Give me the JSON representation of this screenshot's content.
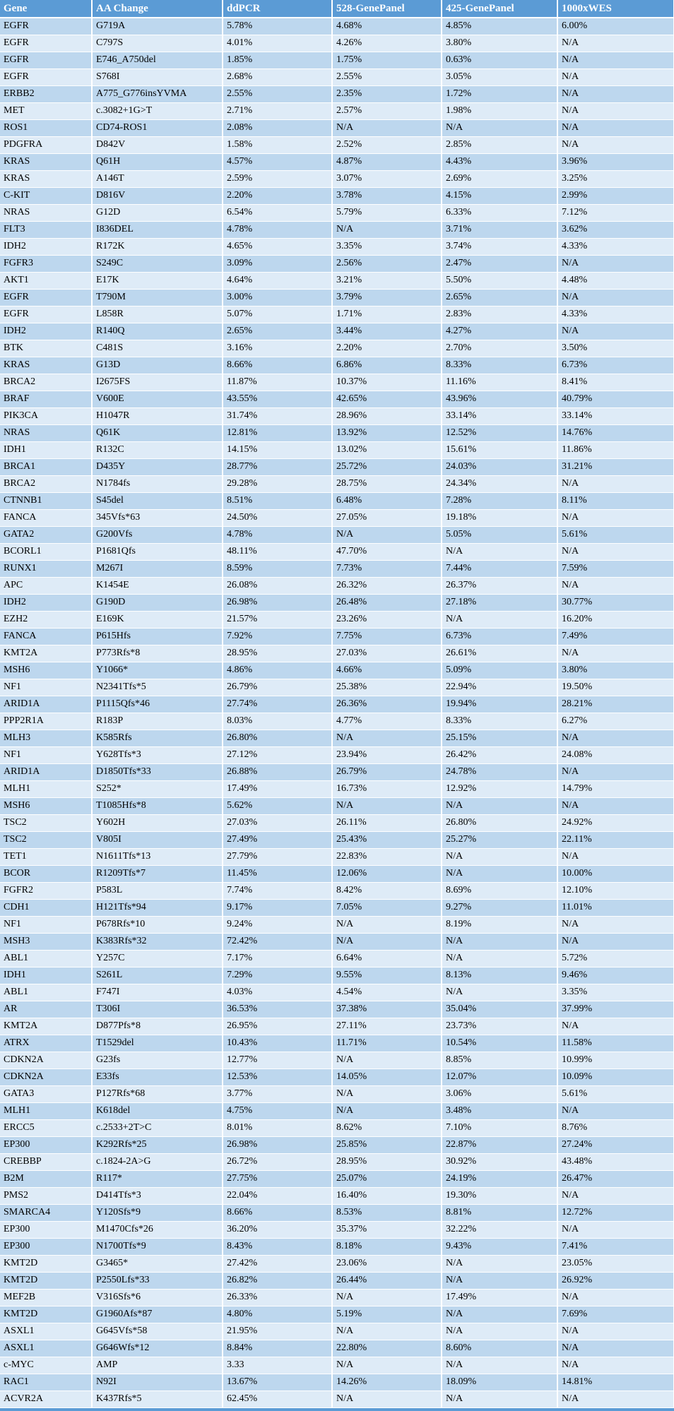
{
  "colors": {
    "header_bg": "#5b9bd5",
    "row_odd_bg": "#bdd7ee",
    "row_even_bg": "#deebf7",
    "border": "#ffffff",
    "header_text": "#ffffff",
    "cell_text": "#000000"
  },
  "table": {
    "columns": [
      "Gene",
      "AA Change",
      "ddPCR",
      "528-GenePanel",
      "425-GenePanel",
      "1000xWES"
    ],
    "rows": [
      [
        "EGFR",
        "G719A",
        "5.78%",
        "4.68%",
        "4.85%",
        "6.00%"
      ],
      [
        "EGFR",
        "C797S",
        "4.01%",
        "4.26%",
        "3.80%",
        "N/A"
      ],
      [
        "EGFR",
        "E746_A750del",
        "1.85%",
        "1.75%",
        "0.63%",
        "N/A"
      ],
      [
        "EGFR",
        "S768I",
        "2.68%",
        "2.55%",
        "3.05%",
        "N/A"
      ],
      [
        "ERBB2",
        "A775_G776insYVMA",
        "2.55%",
        "2.35%",
        "1.72%",
        "N/A"
      ],
      [
        "MET",
        "c.3082+1G>T",
        "2.71%",
        "2.57%",
        "1.98%",
        "N/A"
      ],
      [
        "ROS1",
        "CD74-ROS1",
        "2.08%",
        "N/A",
        "N/A",
        "N/A"
      ],
      [
        "PDGFRA",
        "D842V",
        "1.58%",
        "2.52%",
        "2.85%",
        "N/A"
      ],
      [
        "KRAS",
        "Q61H",
        "4.57%",
        "4.87%",
        "4.43%",
        "3.96%"
      ],
      [
        "KRAS",
        "A146T",
        "2.59%",
        "3.07%",
        "2.69%",
        "3.25%"
      ],
      [
        "C-KIT",
        "D816V",
        "2.20%",
        "3.78%",
        "4.15%",
        "2.99%"
      ],
      [
        "NRAS",
        "G12D",
        "6.54%",
        "5.79%",
        "6.33%",
        "7.12%"
      ],
      [
        "FLT3",
        "I836DEL",
        "4.78%",
        "N/A",
        "3.71%",
        "3.62%"
      ],
      [
        "IDH2",
        "R172K",
        "4.65%",
        "3.35%",
        "3.74%",
        "4.33%"
      ],
      [
        "FGFR3",
        "S249C",
        "3.09%",
        "2.56%",
        "2.47%",
        "N/A"
      ],
      [
        "AKT1",
        "E17K",
        "4.64%",
        "3.21%",
        "5.50%",
        "4.48%"
      ],
      [
        "EGFR",
        "T790M",
        "3.00%",
        "3.79%",
        "2.65%",
        "N/A"
      ],
      [
        "EGFR",
        "L858R",
        "5.07%",
        "1.71%",
        "2.83%",
        "4.33%"
      ],
      [
        "IDH2",
        "R140Q",
        "2.65%",
        "3.44%",
        "4.27%",
        "N/A"
      ],
      [
        "BTK",
        "C481S",
        "3.16%",
        "2.20%",
        "2.70%",
        "3.50%"
      ],
      [
        "KRAS",
        "G13D",
        "8.66%",
        "6.86%",
        "8.33%",
        "6.73%"
      ],
      [
        "BRCA2",
        "I2675FS",
        "11.87%",
        "10.37%",
        "11.16%",
        "8.41%"
      ],
      [
        "BRAF",
        "V600E",
        "43.55%",
        "42.65%",
        "43.96%",
        "40.79%"
      ],
      [
        "PIK3CA",
        "H1047R",
        "31.74%",
        "28.96%",
        "33.14%",
        "33.14%"
      ],
      [
        "NRAS",
        "Q61K",
        "12.81%",
        "13.92%",
        "12.52%",
        "14.76%"
      ],
      [
        "IDH1",
        "R132C",
        "14.15%",
        "13.02%",
        "15.61%",
        "11.86%"
      ],
      [
        "BRCA1",
        "D435Y",
        "28.77%",
        "25.72%",
        "24.03%",
        "31.21%"
      ],
      [
        "BRCA2",
        "N1784fs",
        "29.28%",
        "28.75%",
        "24.34%",
        "N/A"
      ],
      [
        "CTNNB1",
        "S45del",
        "8.51%",
        "6.48%",
        "7.28%",
        "8.11%"
      ],
      [
        "FANCA",
        "345Vfs*63",
        "24.50%",
        "27.05%",
        "19.18%",
        "N/A"
      ],
      [
        "GATA2",
        "G200Vfs",
        "4.78%",
        "N/A",
        "5.05%",
        "5.61%"
      ],
      [
        "BCORL1",
        "P1681Qfs",
        "48.11%",
        "47.70%",
        "N/A",
        "N/A"
      ],
      [
        "RUNX1",
        "M267I",
        "8.59%",
        "7.73%",
        "7.44%",
        "7.59%"
      ],
      [
        "APC",
        "K1454E",
        "26.08%",
        "26.32%",
        "26.37%",
        "N/A"
      ],
      [
        "IDH2",
        "G190D",
        "26.98%",
        "26.48%",
        "27.18%",
        "30.77%"
      ],
      [
        "EZH2",
        "E169K",
        "21.57%",
        "23.26%",
        "N/A",
        "16.20%"
      ],
      [
        "FANCA",
        "P615Hfs",
        "7.92%",
        "7.75%",
        "6.73%",
        "7.49%"
      ],
      [
        "KMT2A",
        "P773Rfs*8",
        "28.95%",
        "27.03%",
        "26.61%",
        "N/A"
      ],
      [
        "MSH6",
        "Y1066*",
        "4.86%",
        "4.66%",
        "5.09%",
        "3.80%"
      ],
      [
        "NF1",
        "N2341Tfs*5",
        "26.79%",
        "25.38%",
        "22.94%",
        "19.50%"
      ],
      [
        "ARID1A",
        "P1115Qfs*46",
        "27.74%",
        "26.36%",
        "19.94%",
        "28.21%"
      ],
      [
        "PPP2R1A",
        "R183P",
        "8.03%",
        "4.77%",
        "8.33%",
        "6.27%"
      ],
      [
        "MLH3",
        "K585Rfs",
        "26.80%",
        "N/A",
        "25.15%",
        "N/A"
      ],
      [
        "NF1",
        "Y628Tfs*3",
        "27.12%",
        "23.94%",
        "26.42%",
        "24.08%"
      ],
      [
        "ARID1A",
        "D1850Tfs*33",
        "26.88%",
        "26.79%",
        "24.78%",
        "N/A"
      ],
      [
        "MLH1",
        "S252*",
        "17.49%",
        "16.73%",
        "12.92%",
        "14.79%"
      ],
      [
        "MSH6",
        "T1085Hfs*8",
        "5.62%",
        "N/A",
        "N/A",
        "N/A"
      ],
      [
        "TSC2",
        "Y602H",
        "27.03%",
        "26.11%",
        "26.80%",
        "24.92%"
      ],
      [
        "TSC2",
        "V805I",
        "27.49%",
        "25.43%",
        "25.27%",
        "22.11%"
      ],
      [
        "TET1",
        "N1611Tfs*13",
        "27.79%",
        "22.83%",
        "N/A",
        "N/A"
      ],
      [
        "BCOR",
        "R1209Tfs*7",
        "11.45%",
        "12.06%",
        "N/A",
        "10.00%"
      ],
      [
        "FGFR2",
        "P583L",
        "7.74%",
        "8.42%",
        "8.69%",
        "12.10%"
      ],
      [
        "CDH1",
        "H121Tfs*94",
        "9.17%",
        "7.05%",
        "9.27%",
        "11.01%"
      ],
      [
        "NF1",
        "P678Rfs*10",
        "9.24%",
        "N/A",
        "8.19%",
        "N/A"
      ],
      [
        "MSH3",
        "K383Rfs*32",
        "72.42%",
        "N/A",
        "N/A",
        "N/A"
      ],
      [
        "ABL1",
        "Y257C",
        "7.17%",
        "6.64%",
        "N/A",
        "5.72%"
      ],
      [
        "IDH1",
        "S261L",
        "7.29%",
        "9.55%",
        "8.13%",
        "9.46%"
      ],
      [
        "ABL1",
        "F747I",
        "4.03%",
        "4.54%",
        "N/A",
        "3.35%"
      ],
      [
        "AR",
        "T306I",
        "36.53%",
        "37.38%",
        "35.04%",
        "37.99%"
      ],
      [
        "KMT2A",
        "D877Pfs*8",
        "26.95%",
        "27.11%",
        "23.73%",
        "N/A"
      ],
      [
        "ATRX",
        "T1529del",
        "10.43%",
        "11.71%",
        "10.54%",
        "11.58%"
      ],
      [
        "CDKN2A",
        "G23fs",
        "12.77%",
        "N/A",
        "8.85%",
        "10.99%"
      ],
      [
        "CDKN2A",
        "E33fs",
        "12.53%",
        "14.05%",
        "12.07%",
        "10.09%"
      ],
      [
        "GATA3",
        "P127Rfs*68",
        "3.77%",
        "N/A",
        "3.06%",
        "5.61%"
      ],
      [
        "MLH1",
        "K618del",
        "4.75%",
        "N/A",
        "3.48%",
        "N/A"
      ],
      [
        "ERCC5",
        "c.2533+2T>C",
        "8.01%",
        "8.62%",
        "7.10%",
        "8.76%"
      ],
      [
        "EP300",
        "K292Rfs*25",
        "26.98%",
        "25.85%",
        "22.87%",
        "27.24%"
      ],
      [
        "CREBBP",
        "c.1824-2A>G",
        "26.72%",
        "28.95%",
        "30.92%",
        "43.48%"
      ],
      [
        "B2M",
        "R117*",
        "27.75%",
        "25.07%",
        "24.19%",
        "26.47%"
      ],
      [
        "PMS2",
        "D414Tfs*3",
        "22.04%",
        "16.40%",
        "19.30%",
        "N/A"
      ],
      [
        "SMARCA4",
        "Y120Sfs*9",
        "8.66%",
        "8.53%",
        "8.81%",
        "12.72%"
      ],
      [
        "EP300",
        "M1470Cfs*26",
        "36.20%",
        "35.37%",
        "32.22%",
        "N/A"
      ],
      [
        "EP300",
        "N1700Tfs*9",
        "8.43%",
        "8.18%",
        "9.43%",
        "7.41%"
      ],
      [
        "KMT2D",
        "G3465*",
        "27.42%",
        "23.06%",
        "N/A",
        "23.05%"
      ],
      [
        "KMT2D",
        "P2550Lfs*33",
        "26.82%",
        "26.44%",
        "N/A",
        "26.92%"
      ],
      [
        "MEF2B",
        "V316Sfs*6",
        "26.33%",
        "N/A",
        "17.49%",
        "N/A"
      ],
      [
        "KMT2D",
        "G1960Afs*87",
        "4.80%",
        "5.19%",
        "N/A",
        "7.69%"
      ],
      [
        "ASXL1",
        "G645Vfs*58",
        "21.95%",
        "N/A",
        "N/A",
        "N/A"
      ],
      [
        "ASXL1",
        "G646Wfs*12",
        "8.84%",
        "22.80%",
        "8.60%",
        "N/A"
      ],
      [
        "c-MYC",
        "AMP",
        "3.33",
        "N/A",
        "N/A",
        "N/A"
      ],
      [
        "RAC1",
        "N92I",
        "13.67%",
        "14.26%",
        "18.09%",
        "14.81%"
      ],
      [
        "ACVR2A",
        "K437Rfs*5",
        "62.45%",
        "N/A",
        "N/A",
        "N/A"
      ]
    ]
  }
}
